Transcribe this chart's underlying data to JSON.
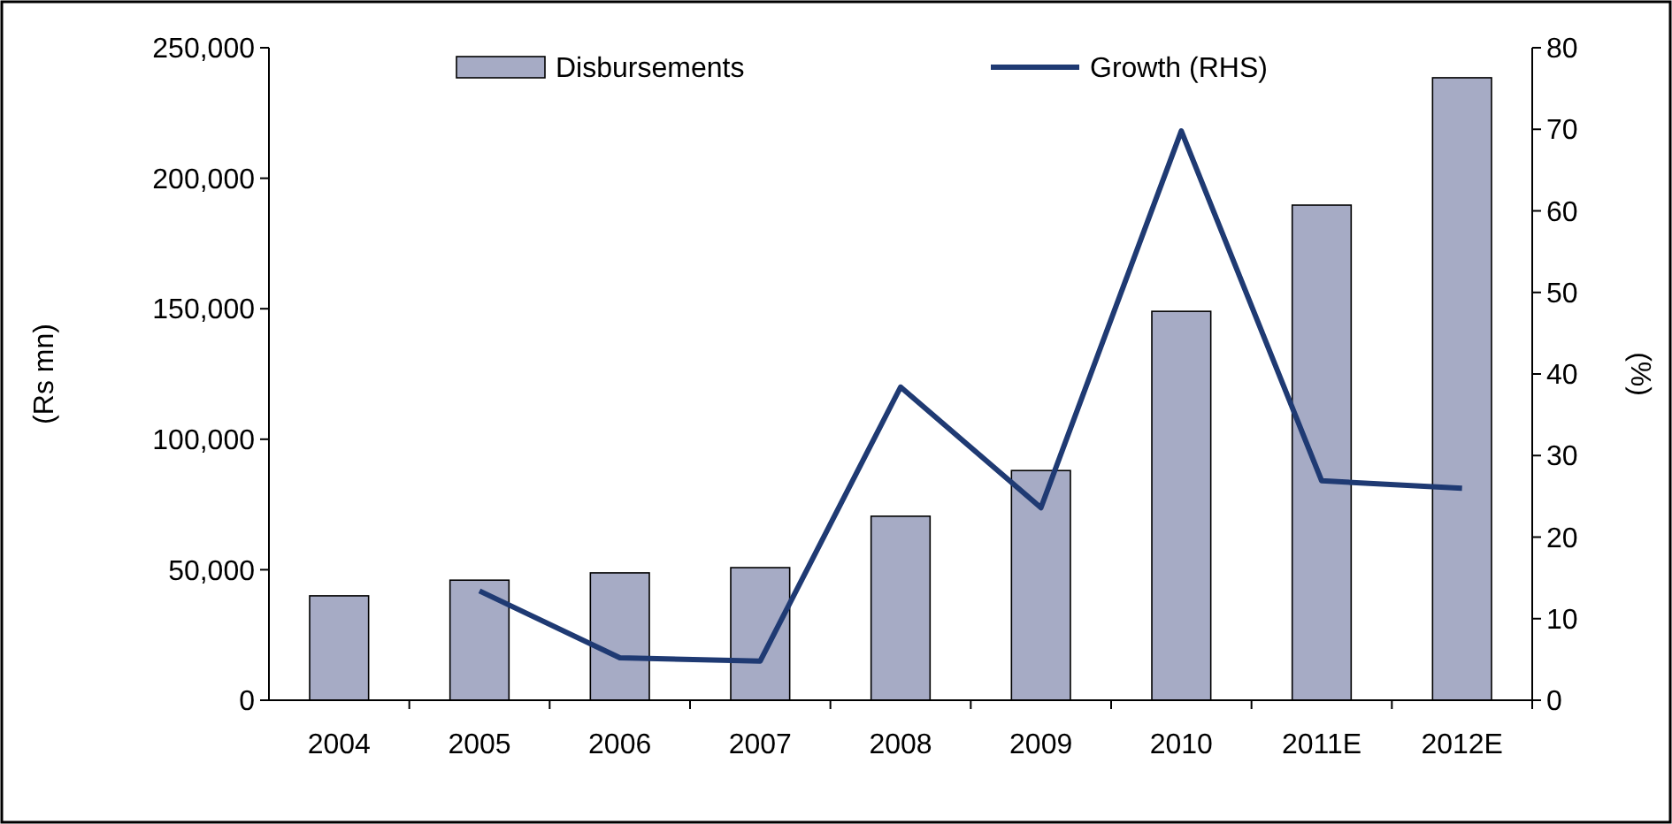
{
  "chart_data": {
    "type": "bar",
    "categories": [
      "2004",
      "2005",
      "2006",
      "2007",
      "2008",
      "2009",
      "2010",
      "2011E",
      "2012E"
    ],
    "series": [
      {
        "name": "Disbursements",
        "color": "#a6abc5",
        "values": [
          40000,
          46000,
          48800,
          50800,
          70500,
          88000,
          149000,
          189700,
          238500
        ]
      },
      {
        "name": "Growth (RHS)",
        "type": "line",
        "axis": "y2",
        "color": "#1f3a73",
        "values": [
          null,
          13.4,
          5.2,
          4.8,
          38.4,
          23.6,
          69.8,
          26.9,
          26.0
        ]
      }
    ],
    "ylabel": "(Rs mn)",
    "y2label": "(%)",
    "ylim": [
      0,
      250000
    ],
    "yticks": [
      {
        "value": 0,
        "label": "0"
      },
      {
        "value": 50000,
        "label": "50,000"
      },
      {
        "value": 100000,
        "label": "100,000"
      },
      {
        "value": 150000,
        "label": "150,000"
      },
      {
        "value": 200000,
        "label": "200,000"
      },
      {
        "value": 250000,
        "label": "250,000"
      }
    ],
    "y2lim": [
      0,
      80
    ],
    "y2ticks": [
      0,
      10,
      20,
      30,
      40,
      50,
      60,
      70,
      80
    ],
    "legend": "top",
    "grid": false,
    "marker": "none",
    "line_style": "solid"
  }
}
